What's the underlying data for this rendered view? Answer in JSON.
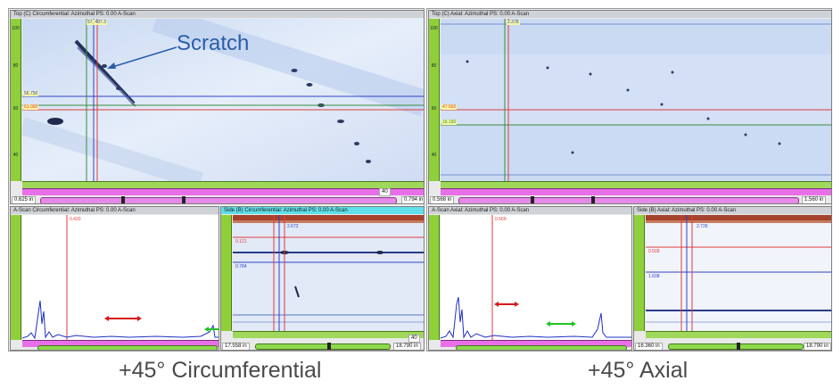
{
  "captions": {
    "left": "+45° Circumferential",
    "right": "+45° Axial"
  },
  "annotation": {
    "text": "Scratch",
    "color": "#2a5da8"
  },
  "colors": {
    "scan_background": "#dbe6f7",
    "cursor_red": "#e03b3b",
    "cursor_blue": "#2f42c8",
    "cursor_green": "#3a8a3a",
    "ruler_green": "#8fd03a",
    "ruler_magenta": "#e86fe8",
    "titlebar_cyan": "#5fe0ea"
  },
  "left_group": {
    "top_panel": {
      "title": "Top (C) Circumferential: Azimuthal PS: 0.00 A-Scan",
      "cursor_tag_top": "57, 487.3",
      "cursor_tag_blue": "56.750",
      "cursor_tag_red": "61.000",
      "range_start": "0.625 in",
      "range_end": "0.794 in",
      "scale_end": "40"
    },
    "ascan_panel": {
      "title": "A-Scan Circumferential: Azimuthal PS: 0.00 A-Scan",
      "cursor_tag": "0.420",
      "range_end": "17.558 in"
    },
    "side_panel": {
      "title": "Side (B) Circumferential: Azimuthal PS: 0.00 A-Scan",
      "cursor_tag_top": "2.672",
      "cursor_tag_red": "0.121",
      "cursor_tag_blue": "0.784",
      "range_start": "17.558 in",
      "range_end": "18.790 in",
      "scale_end": "40"
    }
  },
  "right_group": {
    "top_panel": {
      "title": "Top (C) Axial: Azimuthal PS: 0.00 A-Scan",
      "cursor_tag_top": "2.378",
      "cursor_tag_red": "47.592",
      "cursor_tag_green": "16.160",
      "range_start": "0.568 in",
      "range_end": "1.560 in"
    },
    "ascan_panel": {
      "title": "A-Scan Axial: Azimuthal PS: 0.00 A-Scan",
      "cursor_tag": "0.569",
      "range_end": "16.360 in"
    },
    "side_panel": {
      "title": "Side (B) Axial: Azimuthal PS: 0.00 A-Scan",
      "cursor_tag_top": "2.726",
      "cursor_tag_red": "0.509",
      "cursor_tag_blue": "1.608",
      "range_start": "16.360 in",
      "range_end": "18.790 in"
    }
  }
}
